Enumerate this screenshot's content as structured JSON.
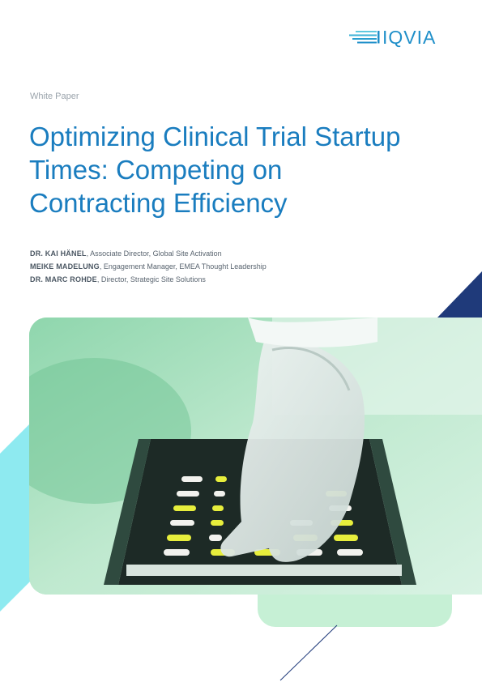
{
  "brand": {
    "name": "IQVIA",
    "primary_color": "#1a7dbf",
    "accent_navy": "#1f3a7a",
    "accent_cyan": "#8eeaf0",
    "accent_mint": "#c6f0d5"
  },
  "document": {
    "type_label": "White Paper",
    "title": "Optimizing Clinical Trial Startup Times: Competing on Contracting Efficiency"
  },
  "authors": [
    {
      "name": "DR. KAI HÄNEL",
      "role": ", Associate Director, Global Site Activation"
    },
    {
      "name": "MEIKE MADELUNG",
      "role": ", Engagement Manager, EMEA Thought Leadership"
    },
    {
      "name": "DR. MARC ROHDE",
      "role": ", Director, Strategic Site Solutions"
    }
  ],
  "cover_image": {
    "subject": "Gloved hand placing yellow and white capsules in a tray"
  }
}
